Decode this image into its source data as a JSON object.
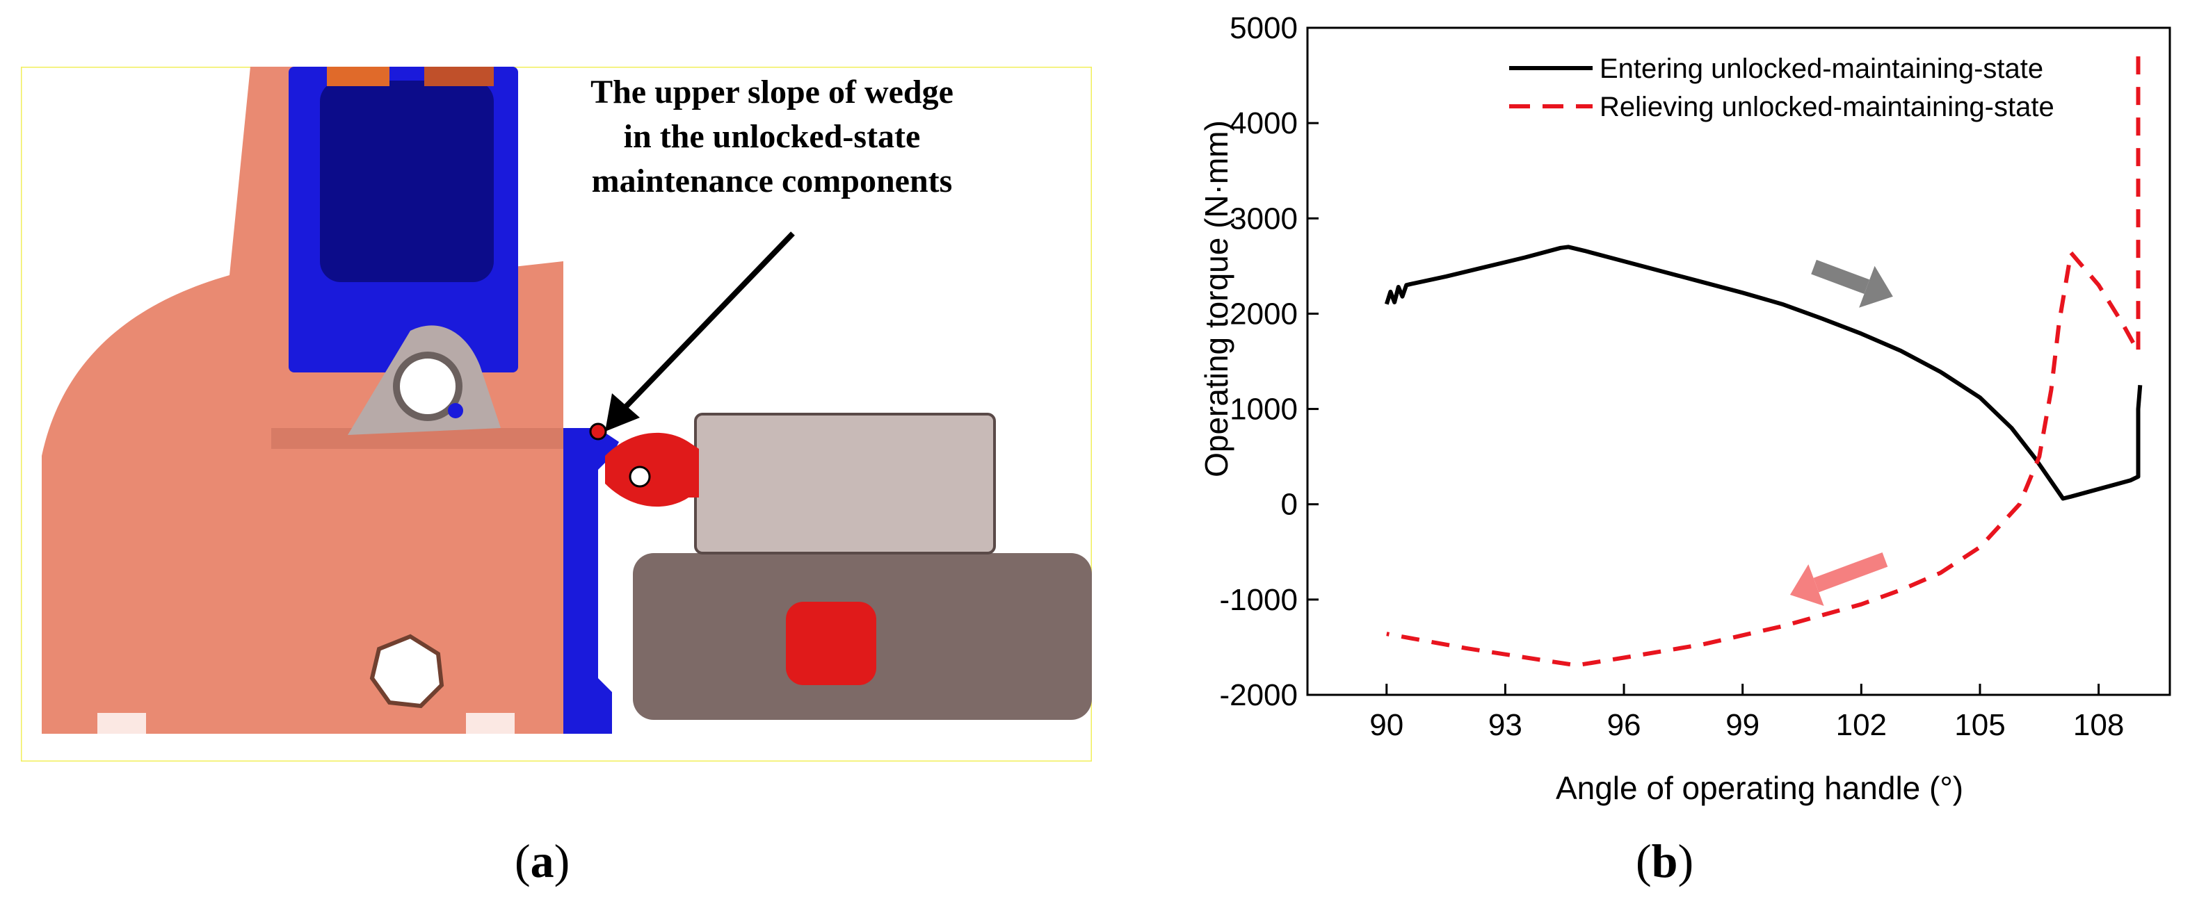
{
  "figure": {
    "panel_a_caption_open": "(",
    "panel_a_caption_letter": "a",
    "panel_a_caption_close": ")",
    "panel_b_caption_open": "(",
    "panel_b_caption_letter": "b",
    "panel_b_caption_close": ")",
    "annotation_lines": [
      "The upper slope of wedge",
      "in the unlocked-state",
      "maintenance components"
    ]
  },
  "colors": {
    "frame": "#e98a72",
    "frame_shade": "#b85f4d",
    "blue": "#1a1adb",
    "dark_blue": "#0c0c8a",
    "gray_link": "#b7aaa8",
    "cylinder": "#7d6a67",
    "box": "#c8bab7",
    "red": "#e01a1a",
    "border_yellow": "#f2ef5a",
    "series_entering": "#000000",
    "series_relieving": "#e8141e",
    "arrow_gray": "#808080",
    "arrow_pink": "#f58080"
  },
  "chart_data": {
    "type": "line",
    "xlabel": "Angle of operating handle (°)",
    "ylabel": "Operating torque (N·mm)",
    "xlim": [
      88,
      109.8
    ],
    "ylim": [
      -2000,
      5000
    ],
    "xticks": [
      "90",
      "93",
      "96",
      "99",
      "102",
      "105",
      "108"
    ],
    "yticks": [
      "5000",
      "4000",
      "3000",
      "2000",
      "1000",
      "0",
      "-1000",
      "-2000"
    ],
    "legend_position": "top-right",
    "grid": false,
    "series": [
      {
        "name": "Entering unlocked-maintaining-state",
        "style": "solid",
        "points": [
          [
            90.0,
            2100
          ],
          [
            90.1,
            2230
          ],
          [
            90.2,
            2120
          ],
          [
            90.3,
            2280
          ],
          [
            90.4,
            2180
          ],
          [
            90.5,
            2300
          ],
          [
            90.6,
            2310
          ],
          [
            91.5,
            2390
          ],
          [
            92.5,
            2490
          ],
          [
            93.5,
            2590
          ],
          [
            94.4,
            2690
          ],
          [
            94.6,
            2700
          ],
          [
            95.0,
            2660
          ],
          [
            96.0,
            2550
          ],
          [
            97.0,
            2440
          ],
          [
            98.0,
            2330
          ],
          [
            99.0,
            2220
          ],
          [
            100.0,
            2100
          ],
          [
            101.0,
            1950
          ],
          [
            102.0,
            1790
          ],
          [
            103.0,
            1610
          ],
          [
            104.0,
            1390
          ],
          [
            105.0,
            1120
          ],
          [
            105.8,
            800
          ],
          [
            106.4,
            480
          ],
          [
            106.9,
            180
          ],
          [
            107.1,
            60
          ],
          [
            107.3,
            80
          ],
          [
            108.0,
            160
          ],
          [
            108.8,
            250
          ],
          [
            109.0,
            290
          ],
          [
            109.0,
            1000
          ],
          [
            109.05,
            1250
          ]
        ]
      },
      {
        "name": "Relieving unlocked-maintaining-state",
        "style": "dashed",
        "points": [
          [
            109.0,
            4700
          ],
          [
            109.0,
            3800
          ],
          [
            109.0,
            2800
          ],
          [
            109.0,
            1600
          ],
          [
            108.6,
            1900
          ],
          [
            108.0,
            2300
          ],
          [
            107.3,
            2640
          ],
          [
            107.0,
            1900
          ],
          [
            106.8,
            1200
          ],
          [
            106.5,
            500
          ],
          [
            106.0,
            0
          ],
          [
            105.0,
            -450
          ],
          [
            104.0,
            -720
          ],
          [
            103.0,
            -900
          ],
          [
            102.0,
            -1050
          ],
          [
            100.0,
            -1280
          ],
          [
            98.0,
            -1470
          ],
          [
            96.0,
            -1610
          ],
          [
            94.8,
            -1690
          ],
          [
            94.0,
            -1640
          ],
          [
            92.0,
            -1510
          ],
          [
            90.0,
            -1360
          ]
        ]
      }
    ],
    "annotations": [
      {
        "type": "arrow",
        "color": "gray",
        "from": [
          100.8,
          2490
        ],
        "to": [
          102.8,
          2180
        ]
      },
      {
        "type": "arrow",
        "color": "pink",
        "from": [
          102.6,
          -580
        ],
        "to": [
          100.2,
          -950
        ]
      }
    ]
  }
}
